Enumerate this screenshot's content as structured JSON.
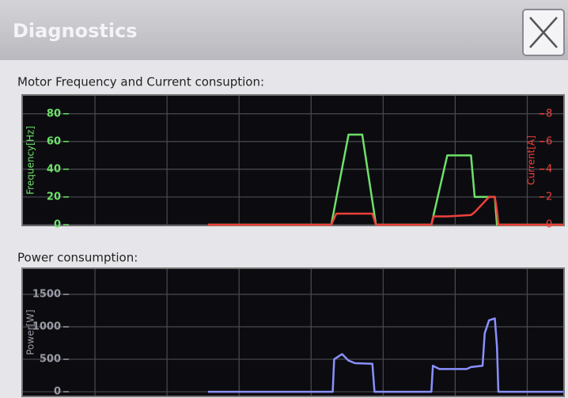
{
  "header": {
    "title": "Diagnostics"
  },
  "chart_data": [
    {
      "type": "line",
      "title": "Motor Frequency and Current consuption:",
      "ylabel": "Frequency[Hz]",
      "y2label": "Current[A]",
      "x": [
        257,
        428,
        435,
        452,
        471,
        485,
        490,
        567,
        570,
        589,
        622,
        627,
        647,
        655,
        658,
        660,
        750
      ],
      "xlim": [
        0,
        750
      ],
      "xticks": [
        100,
        200,
        300,
        400,
        500,
        600,
        700
      ],
      "ylim": [
        0,
        93
      ],
      "yticks": [
        0,
        20,
        40,
        60,
        80
      ],
      "y2lim": [
        0,
        9.3
      ],
      "y2ticks": [
        0,
        2,
        4,
        6,
        8
      ],
      "grid": true,
      "series": [
        {
          "color": "#6fe06a",
          "values": [
            0,
            0,
            19,
            65,
            65,
            17,
            0,
            0,
            7,
            50,
            50,
            20,
            20,
            20,
            0,
            0,
            0
          ]
        },
        {
          "color": "#f0403c",
          "axis": "y2",
          "values": [
            0,
            0,
            0.8,
            0.8,
            0.8,
            0.8,
            0,
            0,
            0.6,
            0.6,
            0.7,
            0.9,
            2,
            2,
            1,
            0,
            0
          ]
        }
      ]
    },
    {
      "type": "line",
      "title": "Power consumption:",
      "ylabel": "Power[W]",
      "x": [
        257,
        430,
        432,
        443,
        452,
        461,
        485,
        488,
        567,
        569,
        578,
        616,
        622,
        638,
        641,
        647,
        655,
        658,
        660,
        750
      ],
      "xlim": [
        0,
        750
      ],
      "xticks": [
        100,
        200,
        300,
        400,
        500,
        600,
        700
      ],
      "ylim": [
        -60,
        1890
      ],
      "yticks": [
        0,
        500,
        1000,
        1500
      ],
      "grid": true,
      "series": [
        {
          "color": "#8a90ff",
          "values": [
            0,
            0,
            500,
            580,
            480,
            440,
            430,
            0,
            0,
            400,
            350,
            350,
            380,
            400,
            900,
            1100,
            1130,
            700,
            0,
            0
          ]
        }
      ]
    }
  ]
}
